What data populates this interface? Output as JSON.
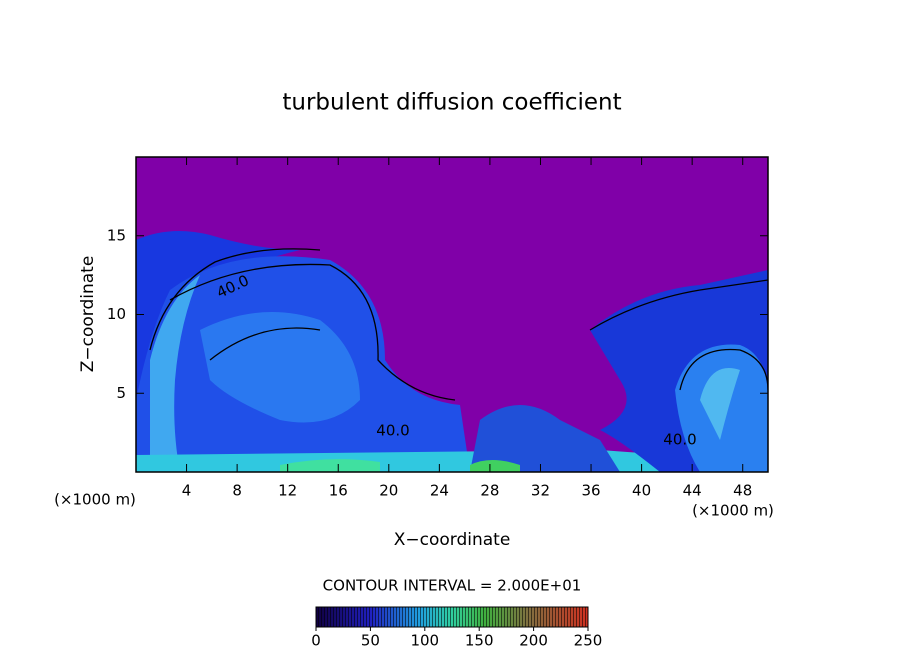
{
  "chart_data": {
    "type": "contour",
    "title": "turbulent diffusion coefficient",
    "x_label": "X−coordinate",
    "y_label": "Z−coordinate",
    "y_unit": "(×1000 m)",
    "x_unit": "(×1000 m)",
    "xlim": [
      0,
      50
    ],
    "xticks": [
      4,
      8,
      12,
      16,
      20,
      24,
      28,
      32,
      36,
      40,
      44,
      48
    ],
    "ylim": [
      0,
      20
    ],
    "yticks": [
      5,
      10,
      15
    ],
    "contour_interval_label": "CONTOUR INTERVAL = 2.000E+01",
    "contour_labels": [
      "40.0",
      "40.0",
      "40.0"
    ],
    "colorbar": {
      "lim": [
        0,
        250
      ],
      "ticks": [
        0,
        50,
        100,
        150,
        200,
        250
      ]
    }
  }
}
